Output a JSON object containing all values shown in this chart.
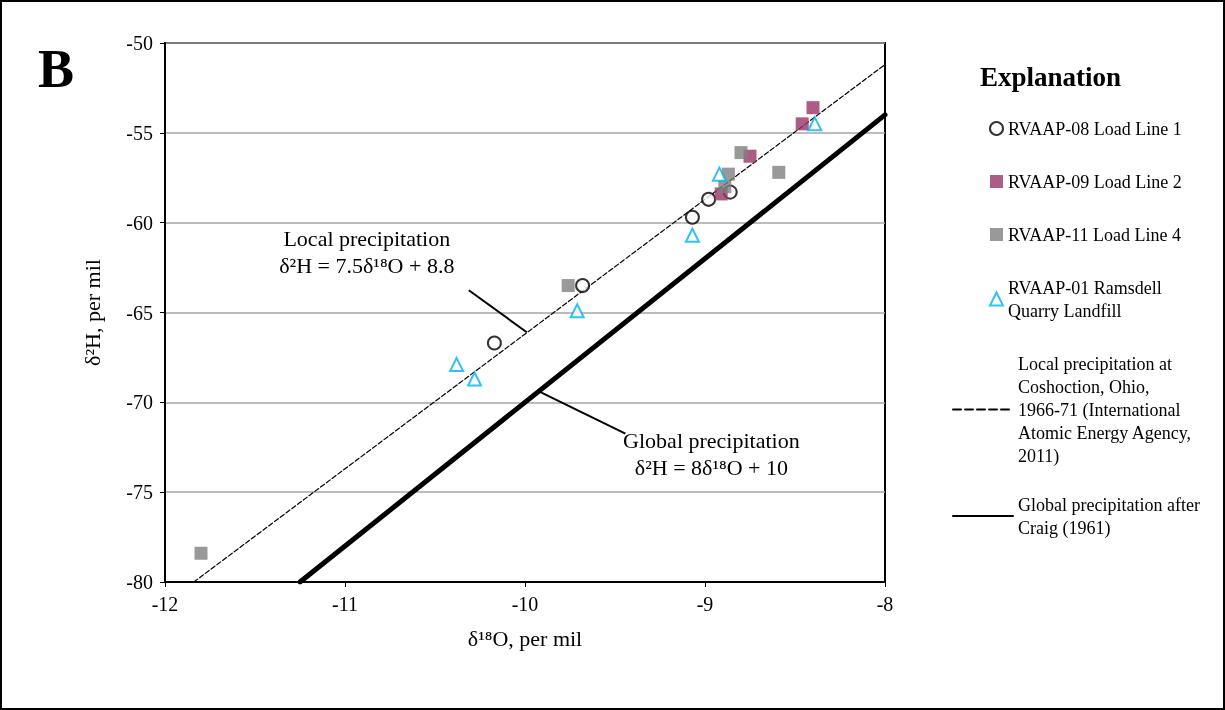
{
  "chart_data": {
    "type": "scatter",
    "xlabel": "δ¹⁸O, per mil",
    "ylabel": "δ²H, per mil",
    "legend_title": "Explanation",
    "annotations": [
      "B",
      {
        "text": "Local precipitation\nδ²H = 7.5δ¹⁸O + 8.8",
        "x": -9.99,
        "y": -66.1
      },
      {
        "text": "Global precipitation\nδ²H = 8δ¹⁸O + 10",
        "x": -9.92,
        "y": -69.4
      }
    ],
    "xlim": [
      -12,
      -8
    ],
    "xticks": [
      -12,
      -11,
      -10,
      -9,
      -8
    ],
    "ylim": [
      -80,
      -50
    ],
    "yticks": [
      -80,
      -75,
      -70,
      -65,
      -60,
      -55,
      -50
    ],
    "grid": "y",
    "legend": "right",
    "series": [
      {
        "name": "RVAAP-08 Load Line 1",
        "color": "#000000",
        "marker": "circle",
        "x": [
          -10.17,
          -9.68,
          -9.07,
          -8.98,
          -8.86
        ],
        "values": [
          -66.7,
          -63.5,
          -59.7,
          -58.7,
          -58.3
        ]
      },
      {
        "name": "RVAAP-09 Load Line 2",
        "color": "#993366",
        "marker": "square",
        "x": [
          -8.4,
          -8.46,
          -8.75,
          -8.91
        ],
        "values": [
          -53.6,
          -54.5,
          -56.3,
          -58.4
        ]
      },
      {
        "name": "RVAAP-11 Load Line 4",
        "color": "#808080",
        "marker": "square",
        "x": [
          -8.8,
          -8.87,
          -8.89,
          -8.59,
          -9.76,
          -11.8
        ],
        "values": [
          -56.1,
          -57.3,
          -58.0,
          -57.2,
          -63.5,
          -78.4
        ]
      },
      {
        "name": "RVAAP-01 Ramsdell Quarry Landfill",
        "color": "#00b0f0",
        "marker": "triangle",
        "x": [
          -8.39,
          -8.92,
          -9.07,
          -9.71,
          -10.38,
          -10.28
        ],
        "values": [
          -54.5,
          -57.3,
          -60.7,
          -64.9,
          -67.9,
          -68.7
        ]
      },
      {
        "name": "Local precipitation at Coshoction, Ohio, 1966-71 (International Atomic Energy Agency, 2011)",
        "type": "line",
        "color": "#000000",
        "line_style": "dashed",
        "marker": "none",
        "x": [
          -11.84,
          -8
        ],
        "values": [
          -80,
          -51.2
        ]
      },
      {
        "name": "Global precipitation after Craig (1961)",
        "type": "line",
        "color": "#000000",
        "line_style": "solid",
        "marker": "none",
        "x": [
          -11.25,
          -8
        ],
        "values": [
          -80,
          -54
        ]
      }
    ]
  }
}
